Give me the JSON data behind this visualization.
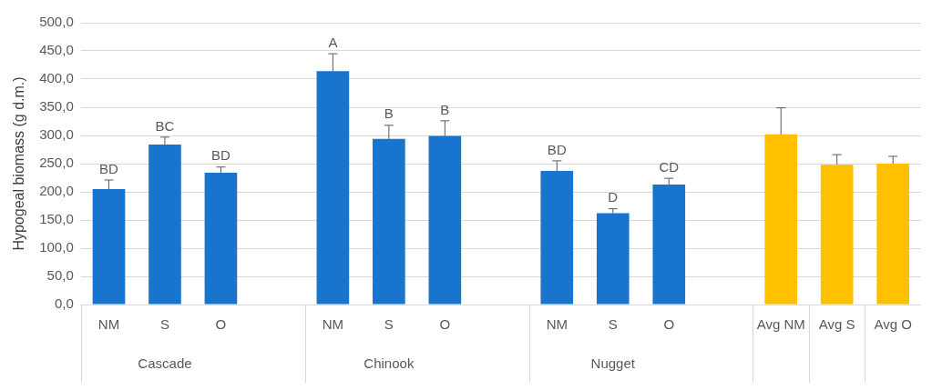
{
  "chart_data": {
    "type": "bar",
    "ylabel": "Hypogeal biomass (g d.m.)",
    "categories": [
      "NM",
      "S",
      "O",
      null,
      "NM",
      "S",
      "O",
      null,
      "NM",
      "S",
      "O",
      null,
      "Avg NM",
      "Avg S",
      "Avg O"
    ],
    "values": [
      205,
      284,
      234,
      null,
      414,
      294,
      299,
      null,
      237,
      162,
      213,
      null,
      302,
      248,
      250
    ],
    "colors": [
      "#1874cd",
      "#1874cd",
      "#1874cd",
      "#1874cd",
      "#1874cd",
      "#1874cd",
      "#1874cd",
      "#1874cd",
      "#1874cd",
      "#1874cd",
      "#1874cd",
      "#1874cd",
      "#ffc000",
      "#ffc000",
      "#ffc000"
    ],
    "errors": [
      [
        205,
        221
      ],
      [
        284,
        297
      ],
      [
        234,
        244
      ],
      null,
      [
        414,
        445
      ],
      [
        294,
        318
      ],
      [
        299,
        326
      ],
      null,
      [
        237,
        255
      ],
      [
        162,
        170
      ],
      [
        213,
        224
      ],
      null,
      [
        302,
        349
      ],
      [
        248,
        266
      ],
      [
        250,
        263
      ]
    ],
    "value_labels": [
      "BD",
      "BC",
      "BD",
      null,
      "A",
      "B",
      "B",
      null,
      "BD",
      "D",
      "CD",
      null,
      null,
      null,
      null
    ],
    "annotations": [
      "Cascade",
      "Chinook",
      "Nugget"
    ],
    "ylim": [
      0,
      500
    ],
    "yticks": [
      {
        "value": 0,
        "label": "0,0"
      },
      {
        "value": 50,
        "label": "50,0"
      },
      {
        "value": 100,
        "label": "100,0"
      },
      {
        "value": 150,
        "label": "150,0"
      },
      {
        "value": 200,
        "label": "200,0"
      },
      {
        "value": 250,
        "label": "250,0"
      },
      {
        "value": 300,
        "label": "300,0"
      },
      {
        "value": 350,
        "label": "350,0"
      },
      {
        "value": 400,
        "label": "400,0"
      },
      {
        "value": 450,
        "label": "450,0"
      },
      {
        "value": 500,
        "label": "500,0"
      }
    ],
    "grid": "y",
    "legend": false
  }
}
